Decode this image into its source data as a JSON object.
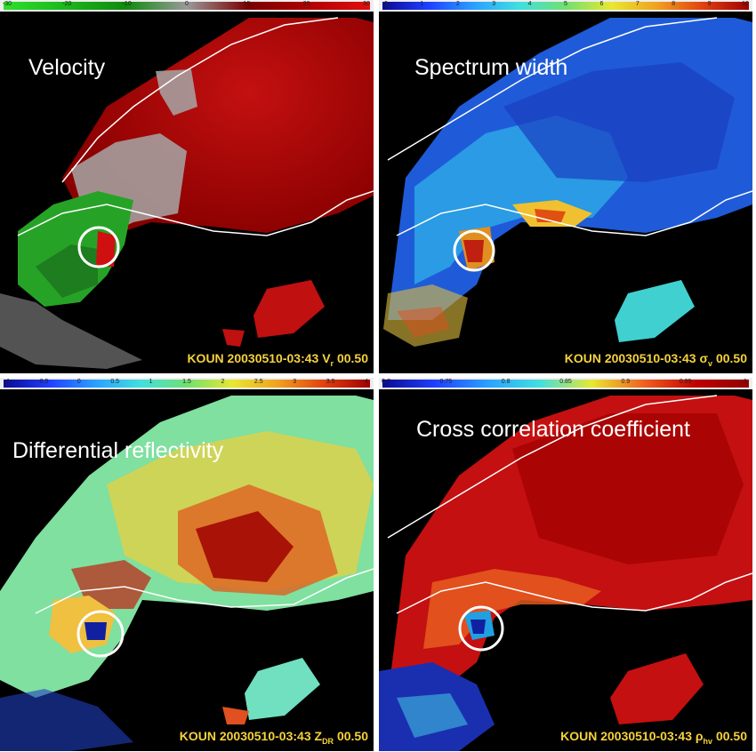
{
  "panels": [
    {
      "title": "Velocity",
      "colorbar_ticks": [
        "-30",
        "-20",
        "-10",
        "0",
        "10",
        "20",
        "30"
      ],
      "colorbar_colors": [
        "#2ee02e",
        "#1cb81c",
        "#0f8a0f",
        "#9a9a9a",
        "#7a0000",
        "#b00000",
        "#e01010"
      ],
      "footer_prefix": "KOUN  20030510-03:43  ",
      "footer_symbol": "V",
      "footer_sub": "r",
      "footer_elev": "00.50"
    },
    {
      "title": "Spectrum width",
      "colorbar_ticks": [
        "0",
        "1",
        "2",
        "3",
        "4",
        "5",
        "6",
        "7",
        "8",
        "9",
        "10"
      ],
      "colorbar_colors": [
        "#0a0a90",
        "#1f3fff",
        "#2aa0ff",
        "#40e0e0",
        "#70e070",
        "#e8e830",
        "#f0a020",
        "#e04010",
        "#a00000"
      ],
      "footer_prefix": "KOUN  20030510-03:43  ",
      "footer_symbol": "σ",
      "footer_sub": "v",
      "footer_elev": "00.50"
    },
    {
      "title": "Differential reflectivity",
      "colorbar_ticks": [
        "-1",
        "-0.5",
        "0",
        "0.5",
        "1",
        "1.5",
        "2",
        "2.5",
        "3",
        "3.5",
        "4"
      ],
      "colorbar_colors": [
        "#0a0a90",
        "#1f3fff",
        "#2aa0ff",
        "#40e0e0",
        "#70e070",
        "#e8e830",
        "#f0a020",
        "#e04010",
        "#a00000"
      ],
      "footer_prefix": "KOUN  20030510-03:43  ",
      "footer_symbol": "Z",
      "footer_sub": "DR",
      "footer_elev": "00.50"
    },
    {
      "title": "Cross correlation coefficient",
      "colorbar_ticks": [
        "0.7",
        "0.75",
        "0.8",
        "0.85",
        "0.9",
        "0.95",
        "1"
      ],
      "colorbar_colors": [
        "#0a0a90",
        "#1f3fff",
        "#2aa0ff",
        "#40e0e0",
        "#e8e830",
        "#f06020",
        "#c00000",
        "#900000"
      ],
      "footer_prefix": "KOUN  20030510-03:43  ",
      "footer_symbol": "ρ",
      "footer_sub": "hv",
      "footer_elev": "00.50"
    }
  ]
}
